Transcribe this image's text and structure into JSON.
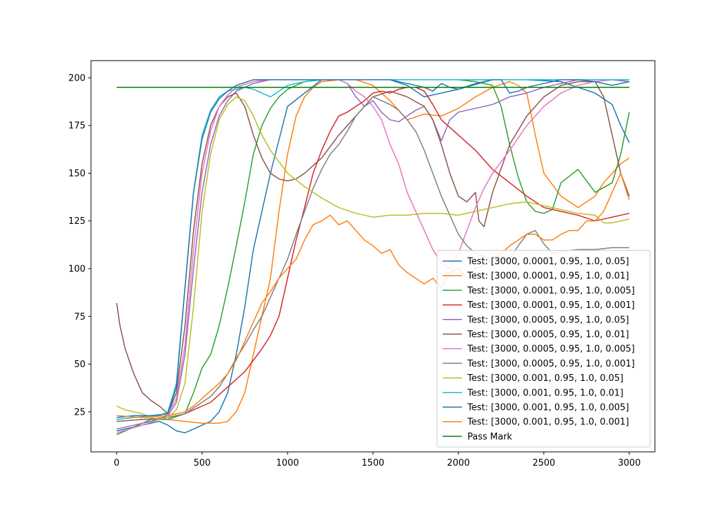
{
  "chart_data": {
    "type": "line",
    "title": "",
    "xlabel": "",
    "ylabel": "",
    "xlim": [
      -150,
      3150
    ],
    "ylim": [
      4,
      209
    ],
    "x_ticks": [
      0,
      500,
      1000,
      1500,
      2000,
      2500,
      3000
    ],
    "y_ticks": [
      25,
      50,
      75,
      100,
      125,
      150,
      175,
      200
    ],
    "grid": false,
    "legend_position": "lower-right",
    "series": [
      {
        "name": "Test: [3000, 0.0001, 0.95, 1.0, 0.05]",
        "color": "#1f77b4",
        "x": [
          0,
          150,
          250,
          300,
          350,
          400,
          450,
          500,
          550,
          600,
          650,
          700,
          750,
          800,
          900,
          1000,
          1200,
          1400,
          1600,
          1700,
          1800,
          2000,
          2200,
          2400,
          2600,
          2800,
          2900,
          2950,
          3000
        ],
        "y": [
          15,
          18,
          20,
          18,
          15,
          14,
          16,
          18,
          20,
          25,
          35,
          55,
          80,
          110,
          150,
          185,
          199,
          199,
          199,
          196,
          190,
          194,
          199,
          199,
          198,
          192,
          186,
          175,
          166
        ]
      },
      {
        "name": "Test: [3000, 0.0001, 0.95, 1.0, 0.01]",
        "color": "#ff7f0e",
        "x": [
          0,
          150,
          300,
          400,
          500,
          550,
          600,
          650,
          700,
          750,
          800,
          850,
          900,
          950,
          1000,
          1050,
          1100,
          1150,
          1200,
          1300,
          1400,
          1500,
          1600,
          1700,
          1800,
          1900,
          2000,
          2100,
          2200,
          2300,
          2350,
          2400,
          2450,
          2500,
          2600,
          2700,
          2800,
          2850,
          2900,
          2950,
          3000
        ],
        "y": [
          20,
          21,
          21,
          20,
          19,
          19,
          19,
          20,
          25,
          35,
          55,
          75,
          95,
          130,
          160,
          180,
          190,
          195,
          198,
          199,
          199,
          196,
          188,
          178,
          181,
          180,
          184,
          190,
          195,
          198,
          196,
          192,
          170,
          150,
          138,
          132,
          138,
          145,
          150,
          155,
          158
        ]
      },
      {
        "name": "Test: [3000, 0.0001, 0.95, 1.0, 0.005]",
        "color": "#2ca02c",
        "x": [
          0,
          100,
          200,
          300,
          400,
          450,
          500,
          550,
          600,
          650,
          700,
          750,
          800,
          850,
          900,
          950,
          1000,
          1100,
          1200,
          1400,
          1600,
          1800,
          2000,
          2100,
          2200,
          2250,
          2300,
          2350,
          2400,
          2450,
          2500,
          2550,
          2600,
          2700,
          2800,
          2900,
          2950,
          3000
        ],
        "y": [
          13,
          17,
          21,
          21,
          24,
          35,
          48,
          55,
          70,
          90,
          112,
          135,
          160,
          175,
          184,
          190,
          194,
          198,
          199,
          199,
          199,
          199,
          199,
          198,
          196,
          185,
          165,
          148,
          135,
          130,
          129,
          131,
          145,
          152,
          140,
          145,
          160,
          182
        ]
      },
      {
        "name": "Test: [3000, 0.0001, 0.95, 1.0, 0.001]",
        "color": "#d62728",
        "x": [
          0,
          150,
          300,
          400,
          500,
          550,
          600,
          650,
          700,
          750,
          800,
          850,
          900,
          950,
          1000,
          1050,
          1100,
          1150,
          1200,
          1250,
          1300,
          1350,
          1400,
          1450,
          1500,
          1550,
          1600,
          1650,
          1700,
          1750,
          1800,
          1850,
          1900,
          2000,
          2100,
          2200,
          2300,
          2400,
          2500,
          2600,
          2700,
          2800,
          2900,
          3000
        ],
        "y": [
          20,
          21,
          22,
          24,
          28,
          30,
          34,
          38,
          42,
          46,
          52,
          58,
          65,
          75,
          95,
          115,
          132,
          150,
          162,
          172,
          180,
          182,
          185,
          188,
          192,
          193,
          192,
          194,
          195,
          195,
          193,
          186,
          178,
          170,
          162,
          152,
          145,
          138,
          132,
          130,
          128,
          125,
          127,
          129
        ]
      },
      {
        "name": "Test: [3000, 0.0005, 0.95, 1.0, 0.05]",
        "color": "#9467bd",
        "x": [
          0,
          200,
          300,
          350,
          400,
          450,
          500,
          550,
          600,
          650,
          700,
          800,
          900,
          1000,
          1200,
          1300,
          1350,
          1400,
          1450,
          1500,
          1550,
          1600,
          1650,
          1700,
          1750,
          1800,
          1850,
          1900,
          1950,
          2000,
          2100,
          2200,
          2300,
          2400,
          2500,
          2600,
          2700,
          2800,
          2900,
          3000
        ],
        "y": [
          16,
          20,
          23,
          30,
          55,
          100,
          140,
          165,
          180,
          188,
          193,
          197,
          199,
          199,
          199,
          199,
          197,
          190,
          185,
          188,
          182,
          178,
          177,
          180,
          183,
          185,
          178,
          167,
          178,
          182,
          184,
          186,
          190,
          192,
          195,
          197,
          199,
          199,
          199,
          198
        ]
      },
      {
        "name": "Test: [3000, 0.0005, 0.95, 1.0, 0.01]",
        "color": "#8c564b",
        "x": [
          0,
          20,
          50,
          100,
          150,
          200,
          250,
          300,
          350,
          400,
          450,
          500,
          550,
          600,
          650,
          700,
          750,
          800,
          850,
          900,
          950,
          1000,
          1050,
          1100,
          1150,
          1200,
          1300,
          1400,
          1500,
          1600,
          1700,
          1800,
          1850,
          1900,
          1950,
          2000,
          2050,
          2100,
          2120,
          2150,
          2200,
          2300,
          2400,
          2500,
          2600,
          2700,
          2800,
          2850,
          2900,
          2950,
          3000
        ],
        "y": [
          82,
          70,
          58,
          45,
          35,
          31,
          28,
          24,
          35,
          70,
          120,
          155,
          175,
          185,
          190,
          192,
          185,
          170,
          158,
          150,
          147,
          146,
          147,
          150,
          154,
          158,
          170,
          180,
          190,
          193,
          190,
          185,
          178,
          165,
          150,
          138,
          135,
          140,
          125,
          122,
          140,
          165,
          180,
          190,
          196,
          198,
          198,
          190,
          170,
          150,
          138
        ]
      },
      {
        "name": "Test: [3000, 0.0005, 0.95, 1.0, 0.005]",
        "color": "#e377c2",
        "x": [
          0,
          150,
          250,
          300,
          350,
          400,
          450,
          500,
          550,
          600,
          650,
          700,
          800,
          900,
          1000,
          1200,
          1300,
          1350,
          1400,
          1450,
          1500,
          1550,
          1600,
          1650,
          1700,
          1750,
          1800,
          1850,
          1900,
          1950,
          2000,
          2050,
          2100,
          2150,
          2200,
          2300,
          2400,
          2500,
          2600,
          2700,
          2800,
          2900,
          3000
        ],
        "y": [
          14,
          18,
          21,
          24,
          32,
          60,
          110,
          150,
          172,
          185,
          191,
          195,
          198,
          199,
          199,
          199,
          199,
          197,
          193,
          190,
          185,
          178,
          165,
          155,
          140,
          130,
          120,
          110,
          103,
          100,
          108,
          120,
          132,
          142,
          150,
          162,
          175,
          185,
          192,
          196,
          198,
          199,
          199
        ]
      },
      {
        "name": "Test: [3000, 0.0005, 0.95, 1.0, 0.001]",
        "color": "#7f7f7f",
        "x": [
          0,
          150,
          300,
          400,
          450,
          500,
          550,
          600,
          650,
          700,
          750,
          800,
          850,
          900,
          950,
          1000,
          1050,
          1100,
          1150,
          1200,
          1250,
          1300,
          1350,
          1400,
          1450,
          1500,
          1550,
          1600,
          1650,
          1700,
          1750,
          1800,
          1850,
          1900,
          1950,
          2000,
          2050,
          2100,
          2200,
          2300,
          2350,
          2400,
          2450,
          2500,
          2550,
          2600,
          2700,
          2800,
          2900,
          3000
        ],
        "y": [
          20,
          21,
          22,
          24,
          27,
          30,
          33,
          38,
          45,
          53,
          60,
          68,
          75,
          85,
          95,
          105,
          118,
          130,
          142,
          152,
          160,
          165,
          172,
          180,
          185,
          190,
          188,
          186,
          183,
          178,
          172,
          162,
          150,
          138,
          128,
          118,
          112,
          108,
          105,
          105,
          112,
          118,
          120,
          113,
          108,
          109,
          110,
          110,
          111,
          111
        ]
      },
      {
        "name": "Test: [3000, 0.001, 0.95, 1.0, 0.05]",
        "color": "#bcbd22",
        "x": [
          0,
          50,
          100,
          150,
          200,
          250,
          300,
          350,
          400,
          450,
          500,
          550,
          600,
          650,
          700,
          750,
          800,
          850,
          900,
          950,
          1000,
          1100,
          1200,
          1300,
          1400,
          1500,
          1600,
          1700,
          1800,
          1900,
          2000,
          2100,
          2200,
          2300,
          2400,
          2500,
          2600,
          2700,
          2800,
          2850,
          2900,
          3000
        ],
        "y": [
          28,
          26,
          25,
          24,
          22,
          21,
          22,
          26,
          40,
          80,
          130,
          160,
          178,
          186,
          190,
          188,
          180,
          170,
          162,
          156,
          150,
          143,
          137,
          132,
          129,
          127,
          128,
          128,
          129,
          129,
          128,
          130,
          132,
          134,
          135,
          133,
          131,
          129,
          128,
          124,
          124,
          126
        ]
      },
      {
        "name": "Test: [3000, 0.001, 0.95, 1.0, 0.01]",
        "color": "#17becf",
        "x": [
          0,
          100,
          200,
          250,
          300,
          350,
          400,
          450,
          500,
          550,
          600,
          650,
          700,
          750,
          800,
          850,
          900,
          950,
          1000,
          1100,
          1200,
          1300,
          1400,
          1600,
          1800,
          2000,
          2200,
          2400,
          2600,
          2800,
          3000
        ],
        "y": [
          21,
          22,
          23,
          23,
          25,
          40,
          90,
          140,
          170,
          183,
          190,
          193,
          194,
          195,
          194,
          192,
          190,
          193,
          196,
          198,
          199,
          199,
          199,
          199,
          199,
          199,
          199,
          199,
          199,
          199,
          199
        ]
      },
      {
        "name": "Test: [3000, 0.001, 0.95, 1.0, 0.005]",
        "color": "#1f77b4",
        "x": [
          0,
          100,
          200,
          300,
          350,
          400,
          450,
          500,
          550,
          600,
          650,
          700,
          800,
          900,
          1000,
          1200,
          1400,
          1600,
          1800,
          1850,
          1900,
          1950,
          2000,
          2100,
          2200,
          2250,
          2300,
          2350,
          2400,
          2500,
          2600,
          2700,
          2800,
          2900,
          3000
        ],
        "y": [
          22,
          23,
          23,
          24,
          38,
          90,
          140,
          168,
          182,
          189,
          193,
          196,
          199,
          199,
          199,
          199,
          199,
          199,
          195,
          193,
          197,
          195,
          194,
          197,
          199,
          199,
          192,
          193,
          195,
          197,
          199,
          199,
          198,
          196,
          198
        ]
      },
      {
        "name": "Test: [3000, 0.001, 0.95, 1.0, 0.001]",
        "color": "#ff7f0e",
        "x": [
          0,
          150,
          300,
          400,
          450,
          500,
          550,
          600,
          650,
          700,
          750,
          800,
          850,
          900,
          950,
          1000,
          1050,
          1100,
          1150,
          1200,
          1250,
          1300,
          1350,
          1400,
          1450,
          1500,
          1550,
          1600,
          1650,
          1700,
          1750,
          1800,
          1850,
          1900,
          1950,
          2000,
          2050,
          2100,
          2150,
          2200,
          2250,
          2300,
          2350,
          2400,
          2450,
          2500,
          2550,
          2600,
          2650,
          2700,
          2750,
          2800,
          2850,
          2900,
          2950,
          3000
        ],
        "y": [
          23,
          22,
          23,
          25,
          28,
          32,
          36,
          40,
          45,
          52,
          62,
          72,
          82,
          88,
          95,
          100,
          105,
          115,
          123,
          125,
          128,
          123,
          125,
          120,
          115,
          112,
          108,
          110,
          102,
          98,
          95,
          92,
          95,
          90,
          98,
          100,
          95,
          100,
          102,
          105,
          108,
          112,
          115,
          118,
          118,
          115,
          115,
          118,
          120,
          120,
          125,
          125,
          130,
          140,
          150,
          136
        ]
      },
      {
        "name": "Pass Mark",
        "color": "#008000",
        "x": [
          0,
          3000
        ],
        "y": [
          195,
          195
        ]
      }
    ]
  }
}
